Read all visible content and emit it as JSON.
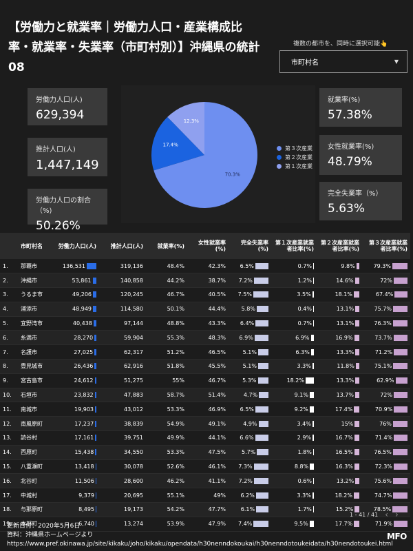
{
  "title": "【労働力と就業率｜労働力人口・産業構成比率・就業率・失業率（市町村別）】沖縄県の統計08",
  "filter": {
    "hint": "複数の都市を、同時に選択可能👆",
    "label": "市町村名"
  },
  "kpis_left": [
    {
      "label": "労働力人口(人)",
      "value": "629,394"
    },
    {
      "label": "推計人口(人)",
      "value": "1,447,149"
    },
    {
      "label": "労働力人口の割合（%)",
      "value": "50.26%"
    }
  ],
  "kpis_right": [
    {
      "label": "就業率(%)",
      "value": "57.38%"
    },
    {
      "label": "女性就業率(%)",
      "value": "48.79%"
    },
    {
      "label": "完全失業率（%）",
      "value": "5.63%"
    }
  ],
  "chart_data": {
    "type": "pie",
    "labels": [
      "第３次産業",
      "第２次産業",
      "第１次産業"
    ],
    "values": [
      70.3,
      17.4,
      12.3
    ],
    "value_labels": [
      "70.3%",
      "17.4%",
      "12.3%"
    ],
    "colors": [
      "#6e8ff0",
      "#1b63e0",
      "#8fa0ef"
    ],
    "legend_position": "right"
  },
  "table": {
    "headers": [
      "",
      "市町村名",
      "労働力人口(人)",
      "推計人口(人)",
      "就業率(%)",
      "女性就業率(%)",
      "完全失業率(%)",
      "第１次産業就業者比率(%)",
      "第２次産業就業者比率(%)",
      "第３次産業就業者比率(%)"
    ],
    "rows": [
      [
        "1.",
        "那覇市",
        "136,531",
        "319,136",
        "48.4%",
        "42.3%",
        "6.5%",
        "0.7%",
        "9.8%",
        "79.3%"
      ],
      [
        "2.",
        "沖縄市",
        "53,861",
        "140,858",
        "44.2%",
        "38.7%",
        "7.2%",
        "1.2%",
        "14.6%",
        "72%"
      ],
      [
        "3.",
        "うるま市",
        "49,206",
        "120,245",
        "46.7%",
        "40.5%",
        "7.5%",
        "3.5%",
        "18.1%",
        "67.4%"
      ],
      [
        "4.",
        "浦添市",
        "48,949",
        "114,580",
        "50.1%",
        "44.4%",
        "5.8%",
        "0.4%",
        "13.1%",
        "75.7%"
      ],
      [
        "5.",
        "宜野湾市",
        "40,438",
        "97,144",
        "48.8%",
        "43.3%",
        "6.4%",
        "0.7%",
        "13.1%",
        "76.3%"
      ],
      [
        "6.",
        "糸満市",
        "28,270",
        "59,904",
        "55.3%",
        "48.3%",
        "6.9%",
        "6.9%",
        "16.9%",
        "73.7%"
      ],
      [
        "7.",
        "名護市",
        "27,025",
        "62,317",
        "51.2%",
        "46.5%",
        "5.1%",
        "6.3%",
        "13.3%",
        "71.2%"
      ],
      [
        "8.",
        "豊見城市",
        "26,436",
        "62,916",
        "51.8%",
        "45.5%",
        "5.1%",
        "3.3%",
        "11.8%",
        "75.1%"
      ],
      [
        "9.",
        "宮古島市",
        "24,612",
        "51,275",
        "55%",
        "46.7%",
        "5.3%",
        "18.2%",
        "13.3%",
        "62.9%"
      ],
      [
        "10.",
        "石垣市",
        "23,832",
        "47,883",
        "58.7%",
        "51.4%",
        "4.7%",
        "9.1%",
        "13.7%",
        "72%"
      ],
      [
        "11.",
        "南城市",
        "19,903",
        "43,012",
        "53.3%",
        "46.9%",
        "6.5%",
        "9.2%",
        "17.4%",
        "70.9%"
      ],
      [
        "12.",
        "南風原町",
        "17,237",
        "38,839",
        "54.9%",
        "49.1%",
        "4.9%",
        "3.4%",
        "15%",
        "76%"
      ],
      [
        "13.",
        "読谷村",
        "17,161",
        "39,751",
        "49.9%",
        "44.1%",
        "6.6%",
        "2.9%",
        "16.7%",
        "71.4%"
      ],
      [
        "14.",
        "西原町",
        "15,438",
        "34,550",
        "53.3%",
        "47.5%",
        "5.7%",
        "1.8%",
        "16.5%",
        "76.5%"
      ],
      [
        "15.",
        "八重瀬町",
        "13,418",
        "30,078",
        "52.6%",
        "46.1%",
        "7.3%",
        "8.8%",
        "16.3%",
        "72.3%"
      ],
      [
        "16.",
        "北谷町",
        "11,506",
        "28,600",
        "46.2%",
        "41.1%",
        "7.2%",
        "0.6%",
        "13.2%",
        "75.6%"
      ],
      [
        "17.",
        "中城村",
        "9,379",
        "20,695",
        "55.1%",
        "49%",
        "6.2%",
        "3.3%",
        "18.2%",
        "74.7%"
      ],
      [
        "18.",
        "与那原町",
        "8,495",
        "19,173",
        "54.2%",
        "47.7%",
        "6.1%",
        "1.7%",
        "15.2%",
        "78.5%"
      ],
      [
        "19.",
        "本部町",
        "6,740",
        "13,274",
        "53.9%",
        "47.9%",
        "7.4%",
        "9.5%",
        "17.7%",
        "71.9%"
      ]
    ],
    "pager": "1 - 41 / 41"
  },
  "footer": {
    "updated": "更新日付：2020年5月6日",
    "source": "資料：沖縄県ホームページより",
    "url": "https://www.pref.okinawa.jp/site/kikaku/joho/kikaku/opendata/h30nenndokoukai/h30nenndotoukeidata/h30nendotoukei.html"
  },
  "logo": "MFO",
  "colors": {
    "labor_bar": "#2a6de8",
    "unemp_bar": "#c9cde8",
    "primary_bar": "#ffffff",
    "secondary_bar": "#d6b6d9",
    "tertiary_bar": "#c7a1cf"
  }
}
